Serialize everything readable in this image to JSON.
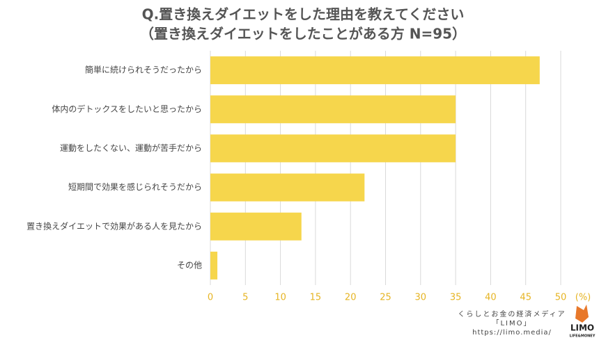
{
  "chart_data": {
    "type": "barh",
    "title": "Q.置き換えダイエットをした理由を教えてください",
    "subtitle": "（置き換えダイエットをしたことがある方 N=95）",
    "categories": [
      "簡単に続けられそうだったから",
      "体内のデトックスをしたいと思ったから",
      "運動をしたくない、運動が苦手だから",
      "短期間で効果を感じられそうだから",
      "置き換えダイエットで効果がある人を見たから",
      "その他"
    ],
    "values": [
      47,
      35,
      35,
      22,
      13,
      1
    ],
    "color": "#f6d64c",
    "xlim": [
      0,
      50
    ],
    "xticks": [
      0,
      5,
      10,
      15,
      20,
      25,
      30,
      35,
      40,
      45,
      50
    ],
    "x_unit": "(%)",
    "grid": true
  },
  "footer": {
    "tagline": "くらしとお金の経済メディア",
    "brand": "「LIMO」",
    "url": "https://limo.media/",
    "logo": "LIMO",
    "logo_sub": "LIFE&MONEY"
  }
}
